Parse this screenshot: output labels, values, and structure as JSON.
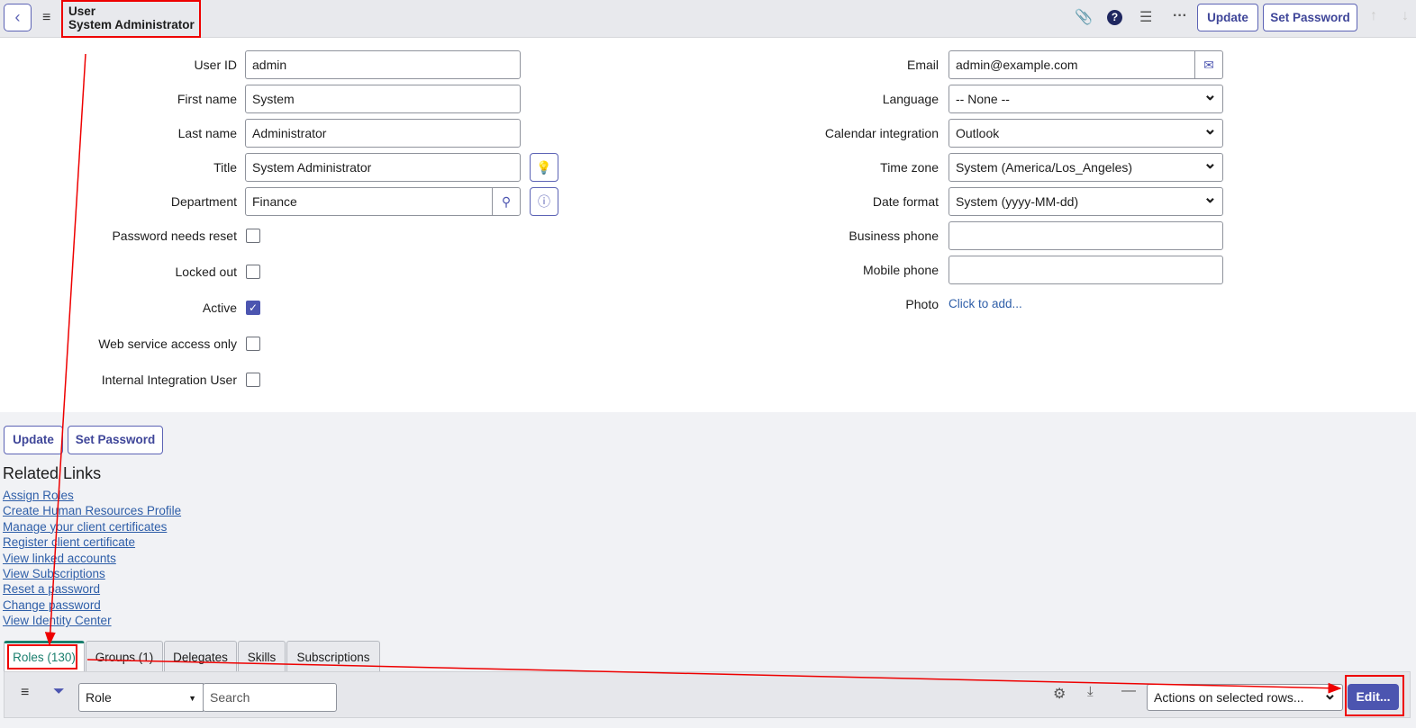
{
  "header": {
    "record_type": "User",
    "record_name": "System Administrator",
    "update": "Update",
    "set_password": "Set Password"
  },
  "form": {
    "left": [
      {
        "label": "User ID",
        "value": "admin"
      },
      {
        "label": "First name",
        "value": "System"
      },
      {
        "label": "Last name",
        "value": "Administrator"
      },
      {
        "label": "Title",
        "value": "System Administrator"
      },
      {
        "label": "Department",
        "value": "Finance"
      }
    ],
    "checkboxes": [
      {
        "label": "Password needs reset",
        "checked": false
      },
      {
        "label": "Locked out",
        "checked": false
      },
      {
        "label": "Active",
        "checked": true
      },
      {
        "label": "Web service access only",
        "checked": false
      },
      {
        "label": "Internal Integration User",
        "checked": false
      }
    ],
    "right": [
      {
        "label": "Email",
        "value": "admin@example.com"
      },
      {
        "label": "Language",
        "value": "-- None --"
      },
      {
        "label": "Calendar integration",
        "value": "Outlook"
      },
      {
        "label": "Time zone",
        "value": "System (America/Los_Angeles)"
      },
      {
        "label": "Date format",
        "value": "System (yyyy-MM-dd)"
      },
      {
        "label": "Business phone",
        "value": ""
      },
      {
        "label": "Mobile phone",
        "value": ""
      }
    ],
    "photo_label": "Photo",
    "photo_link": "Click to add..."
  },
  "bottom_buttons": {
    "update": "Update",
    "set_password": "Set Password"
  },
  "related_links": {
    "title": "Related Links",
    "items": [
      "Assign Roles",
      "Create Human Resources Profile",
      "Manage your client certificates",
      "Register client certificate",
      "View linked accounts",
      "View Subscriptions",
      "Reset a password",
      "Change password",
      "View Identity Center"
    ]
  },
  "tabs": [
    "Roles (130)",
    "Groups (1)",
    "Delegates",
    "Skills",
    "Subscriptions"
  ],
  "list": {
    "search_field": "Role",
    "search_placeholder": "Search",
    "actions": "Actions on selected rows...",
    "edit": "Edit..."
  },
  "colors": {
    "accent": "#4c55b0",
    "annotation": "#e00000",
    "active_tab": "#1a7f6e"
  }
}
